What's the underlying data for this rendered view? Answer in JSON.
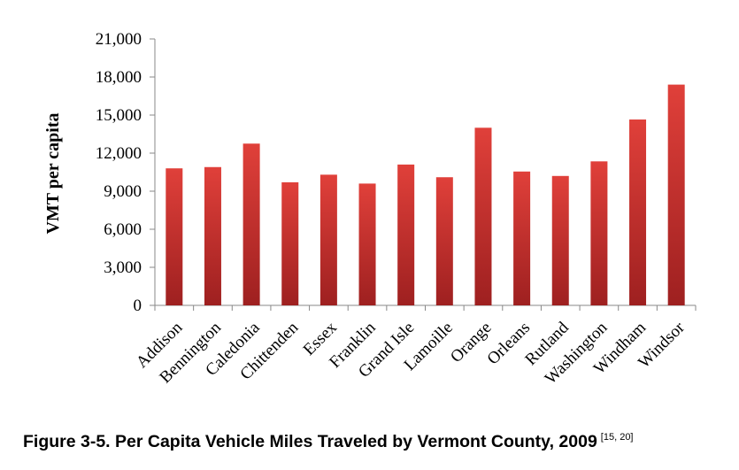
{
  "caption": {
    "text": "Figure 3-5. Per Capita Vehicle Miles Traveled by Vermont County, 2009",
    "reference": "[15, 20]"
  },
  "chart_data": {
    "type": "bar",
    "title": "",
    "xlabel": "",
    "ylabel": "VMT per capita",
    "ylim": [
      0,
      21000
    ],
    "yticks": [
      0,
      3000,
      6000,
      9000,
      12000,
      15000,
      18000,
      21000
    ],
    "ytick_labels": [
      "0",
      "3,000",
      "6,000",
      "9,000",
      "12,000",
      "15,000",
      "18,000",
      "21,000"
    ],
    "grid": false,
    "legend": "none",
    "bar_color_top": "#e0403a",
    "bar_color_bottom": "#9e2020",
    "categories": [
      "Addison",
      "Bennington",
      "Caledonia",
      "Chittenden",
      "Essex",
      "Franklin",
      "Grand Isle",
      "Lamoille",
      "Orange",
      "Orleans",
      "Rutland",
      "Washington",
      "Windham",
      "Windsor"
    ],
    "values": [
      10800,
      10900,
      12750,
      9700,
      10300,
      9600,
      11100,
      10100,
      14000,
      10550,
      10200,
      11350,
      14650,
      17400
    ]
  }
}
